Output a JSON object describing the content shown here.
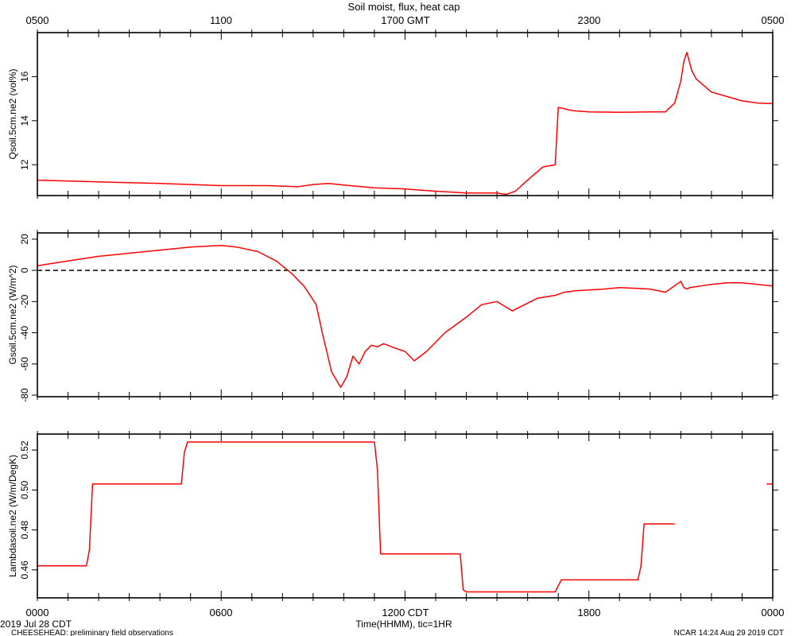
{
  "title": "Soil moist, flux, heat cap",
  "top_axis": {
    "ticks": [
      "0500",
      "1100",
      "1700 GMT",
      "2300",
      "0500"
    ]
  },
  "bottom_axis": {
    "ticks": [
      "0000",
      "0600",
      "1200 CDT",
      "1800",
      "0000"
    ],
    "label": "Time(HHMM), tic=1HR",
    "date": "2019 Jul 28 CDT"
  },
  "footer": {
    "left": "CHEESEHEAD: preliminary field observations",
    "right": "NCAR 14:24 Aug 29 2019 CDT"
  },
  "colors": {
    "series": "#ff0000",
    "axis": "#000000",
    "zero_line": "#000000"
  },
  "chart_data": [
    {
      "type": "line",
      "ylabel": "Qsoil.5cm.ne2 (vol%)",
      "ylim": [
        10.6,
        18.0
      ],
      "yticks": [
        12,
        14,
        16
      ],
      "ytick_labels": [
        "12",
        "14",
        "16"
      ],
      "x_unit": "hours since 0000 CDT",
      "series": [
        {
          "x": [
            0,
            2,
            4,
            6,
            7.5,
            8.5,
            9,
            9.5,
            10.2,
            11,
            12,
            13,
            14,
            15,
            15.3,
            15.6,
            16,
            16.5,
            16.9,
            17.0,
            17.2,
            17.3,
            17.5,
            18,
            19,
            20,
            20.5,
            20.8,
            21.0,
            21.1,
            21.2,
            21.35,
            21.5,
            22,
            23,
            23.5,
            24
          ],
          "values": [
            11.3,
            11.22,
            11.15,
            11.05,
            11.05,
            11.0,
            11.1,
            11.15,
            11.05,
            10.95,
            10.9,
            10.8,
            10.72,
            10.72,
            10.65,
            10.8,
            11.3,
            11.9,
            12.0,
            14.6,
            14.55,
            14.5,
            14.45,
            14.4,
            14.38,
            14.4,
            14.4,
            14.8,
            15.8,
            16.7,
            17.1,
            16.3,
            15.9,
            15.3,
            14.9,
            14.8,
            14.78
          ]
        }
      ]
    },
    {
      "type": "line",
      "ylabel": "Gsoil.5cm.ne2 (W/m^2)",
      "ylim": [
        -81,
        24
      ],
      "yticks": [
        -80,
        -60,
        -40,
        -20,
        0,
        20
      ],
      "ytick_labels": [
        "-80",
        "-60",
        "-40",
        "-20",
        "0",
        "20"
      ],
      "reference_line": 0,
      "series": [
        {
          "x": [
            0,
            1,
            2,
            3,
            4,
            5,
            6,
            6.5,
            7.2,
            7.8,
            8.3,
            8.7,
            9.1,
            9.3,
            9.6,
            9.9,
            10.1,
            10.3,
            10.5,
            10.7,
            10.9,
            11.1,
            11.3,
            11.7,
            12.0,
            12.3,
            12.7,
            13.3,
            14.0,
            14.5,
            15.0,
            15.5,
            16.0,
            16.3,
            16.6,
            16.9,
            17.2,
            17.6,
            18.5,
            19.0,
            19.5,
            20.0,
            20.5,
            21.0,
            21.1,
            21.2,
            21.3,
            22.0,
            22.5,
            23.0,
            24.0
          ],
          "values": [
            3,
            6,
            9,
            11,
            13,
            15,
            16,
            15,
            12,
            6,
            -2,
            -10,
            -22,
            -40,
            -65,
            -75,
            -68,
            -55,
            -60,
            -52,
            -48,
            -49,
            -47,
            -50,
            -52,
            -58,
            -52,
            -40,
            -30,
            -22,
            -20,
            -26,
            -21,
            -18,
            -17,
            -16,
            -14,
            -13,
            -12,
            -11,
            -11.5,
            -12,
            -14,
            -7,
            -11,
            -12,
            -11,
            -9,
            -8,
            -8,
            -10
          ]
        }
      ]
    },
    {
      "type": "line",
      "ylabel": "Lambdasoil.ne2 (W/m/DegK)",
      "ylim": [
        0.446,
        0.528
      ],
      "yticks": [
        0.46,
        0.48,
        0.5,
        0.52
      ],
      "ytick_labels": [
        "0.46",
        "0.48",
        "0.50",
        "0.52"
      ],
      "series": [
        {
          "x": [
            0,
            1.6,
            1.7,
            1.8,
            4.7,
            4.8,
            4.9,
            11.0,
            11.1,
            11.2,
            13.8,
            13.9,
            14.0,
            16.9,
            17.0,
            17.1,
            19.6,
            19.7,
            19.8,
            20.8
          ],
          "values": [
            0.462,
            0.462,
            0.47,
            0.503,
            0.503,
            0.519,
            0.524,
            0.524,
            0.51,
            0.468,
            0.468,
            0.45,
            0.449,
            0.449,
            0.452,
            0.455,
            0.455,
            0.462,
            0.483,
            0.483
          ]
        },
        {
          "x": [
            23.8,
            24.0
          ],
          "values": [
            0.503,
            0.503
          ]
        }
      ]
    }
  ]
}
